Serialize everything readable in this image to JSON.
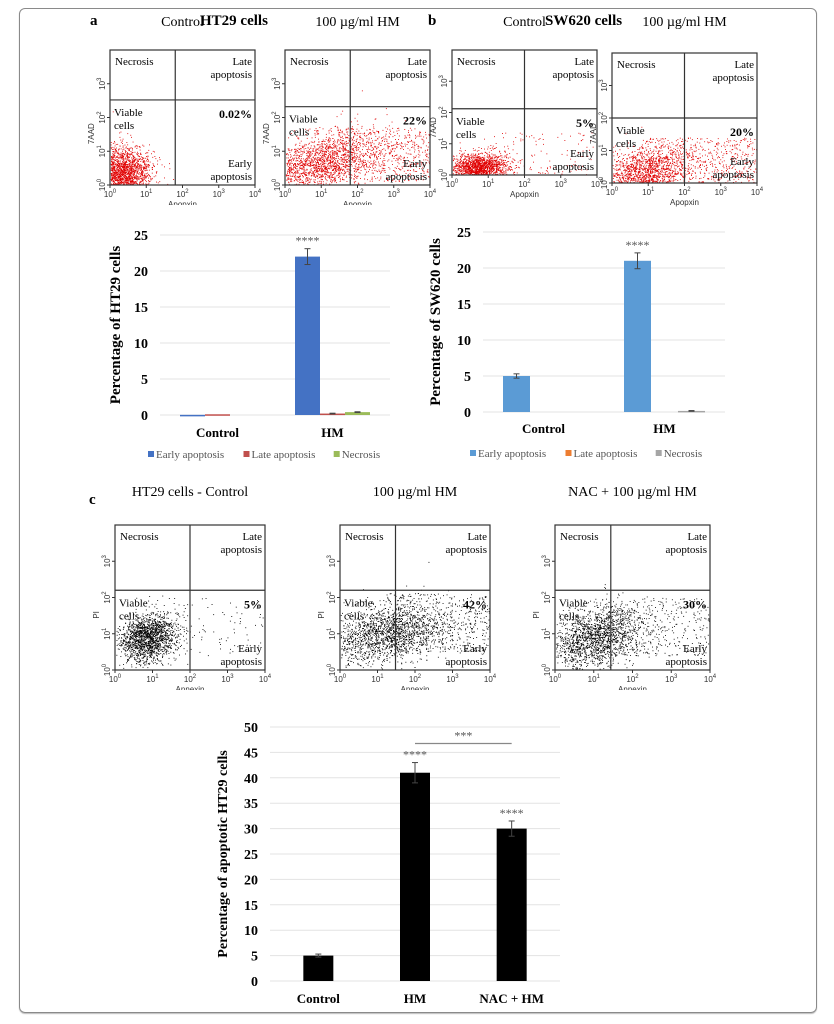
{
  "figure": {
    "panel_a": {
      "letter": "a",
      "title": "HT29 cells"
    },
    "panel_b": {
      "letter": "b",
      "title": "SW620 cells"
    },
    "panel_c": {
      "letter": "c"
    }
  },
  "flow_plots": [
    {
      "id": "a-control",
      "title": "Control",
      "x_label": "Apopxin",
      "y_label": "7AAD",
      "quadrants": {
        "ul": "Necrosis",
        "ur": "Late apoptosis",
        "ll": "Viable cells",
        "lr": "Early apoptosis"
      },
      "early_apoptosis_pct": "0.02%",
      "dot_color": "#e00000"
    },
    {
      "id": "a-hm",
      "title": "100 µg/ml HM",
      "x_label": "Apopxin",
      "y_label": "7AAD",
      "quadrants": {
        "ul": "Necrosis",
        "ur": "Late apoptosis",
        "ll": "Viable cells",
        "lr": "Early apoptosis"
      },
      "early_apoptosis_pct": "22%",
      "dot_color": "#e00000"
    },
    {
      "id": "b-control",
      "title": "Control",
      "x_label": "Apopxin",
      "y_label": "7AAD",
      "quadrants": {
        "ul": "Necrosis",
        "ur": "Late apoptosis",
        "ll": "Viable cells",
        "lr": "Early apoptosis"
      },
      "early_apoptosis_pct": "5%",
      "dot_color": "#e00000"
    },
    {
      "id": "b-hm",
      "title": "100 µg/ml HM",
      "x_label": "Apopxin",
      "y_label": "7AAD",
      "quadrants": {
        "ul": "Necrosis",
        "ur": "Late apoptosis",
        "ll": "Viable cells",
        "lr": "Early apoptosis"
      },
      "early_apoptosis_pct": "20%",
      "dot_color": "#e00000"
    },
    {
      "id": "c-control",
      "title": "HT29 cells - Control",
      "x_label": "Annexin",
      "y_label": "PI",
      "quadrants": {
        "ul": "Necrosis",
        "ur": "Late apoptosis",
        "ll": "Viable cells",
        "lr": "Early apoptosis"
      },
      "early_apoptosis_pct": "5%",
      "dot_color": "#000000"
    },
    {
      "id": "c-hm",
      "title": "100 µg/ml HM",
      "x_label": "Annexin",
      "y_label": "PI",
      "quadrants": {
        "ul": "Necrosis",
        "ur": "Late apoptosis",
        "ll": "Viable cells",
        "lr": "Early apoptosis"
      },
      "early_apoptosis_pct": "42%",
      "dot_color": "#000000"
    },
    {
      "id": "c-nac",
      "title": "NAC + 100 µg/ml HM",
      "x_label": "Annexin",
      "y_label": "PI",
      "quadrants": {
        "ul": "Necrosis",
        "ur": "Late apoptosis",
        "ll": "Viable cells",
        "lr": "Early apoptosis"
      },
      "early_apoptosis_pct": "30%",
      "dot_color": "#000000"
    }
  ],
  "flow_axis_ticks": [
    "10^0",
    "10^1",
    "10^2",
    "10^3",
    "10^4"
  ],
  "chart_data": [
    {
      "id": "ht29-bar",
      "type": "bar",
      "title": "",
      "xlabel": "",
      "ylabel": "Percentage of HT29 cells",
      "ylim": [
        0,
        25
      ],
      "yticks": [
        0,
        5,
        10,
        15,
        20,
        25
      ],
      "grid": true,
      "legend": "bottom",
      "categories": [
        "Control",
        "HM"
      ],
      "series": [
        {
          "name": "Early apoptosis",
          "color": "#4472c4",
          "values": [
            0.02,
            22
          ],
          "errors": [
            0,
            1.1
          ]
        },
        {
          "name": "Late apoptosis",
          "color": "#c0504d",
          "values": [
            0.1,
            0.2
          ],
          "errors": [
            0,
            0.05
          ]
        },
        {
          "name": "Necrosis",
          "color": "#9bbb59",
          "values": [
            0,
            0.4
          ],
          "errors": [
            0,
            0.05
          ]
        }
      ],
      "annotations": [
        {
          "category": "HM",
          "series": "Early apoptosis",
          "text": "****"
        }
      ]
    },
    {
      "id": "sw620-bar",
      "type": "bar",
      "title": "",
      "xlabel": "",
      "ylabel": "Percentage of SW620 cells",
      "ylim": [
        0,
        25
      ],
      "yticks": [
        0,
        5,
        10,
        15,
        20,
        25
      ],
      "grid": true,
      "legend": "bottom",
      "categories": [
        "Control",
        "HM"
      ],
      "series": [
        {
          "name": "Early apoptosis",
          "color": "#5b9bd5",
          "values": [
            5,
            21
          ],
          "errors": [
            0.3,
            1.1
          ]
        },
        {
          "name": "Late apoptosis",
          "color": "#ed7d31",
          "values": [
            0,
            0
          ],
          "errors": [
            0,
            0
          ]
        },
        {
          "name": "Necrosis",
          "color": "#a5a5a5",
          "values": [
            0,
            0.15
          ],
          "errors": [
            0,
            0.05
          ]
        }
      ],
      "annotations": [
        {
          "category": "HM",
          "series": "Early apoptosis",
          "text": "****"
        }
      ]
    },
    {
      "id": "apoptotic-bar",
      "type": "bar",
      "title": "",
      "xlabel": "",
      "ylabel": "Percentage of apoptotic HT29 cells",
      "ylim": [
        0,
        50
      ],
      "yticks": [
        0,
        5,
        10,
        15,
        20,
        25,
        30,
        35,
        40,
        45,
        50
      ],
      "grid": true,
      "legend": "none",
      "categories": [
        "Control",
        "HM",
        "NAC + HM"
      ],
      "series": [
        {
          "name": "Apoptotic cells",
          "color": "#000000",
          "values": [
            5,
            41,
            30
          ],
          "errors": [
            0.3,
            2,
            1.5
          ]
        }
      ],
      "annotations": [
        {
          "category": "HM",
          "text": "****"
        },
        {
          "category": "NAC + HM",
          "text": "****"
        },
        {
          "bracket": [
            "HM",
            "NAC + HM"
          ],
          "text": "***"
        }
      ]
    }
  ]
}
